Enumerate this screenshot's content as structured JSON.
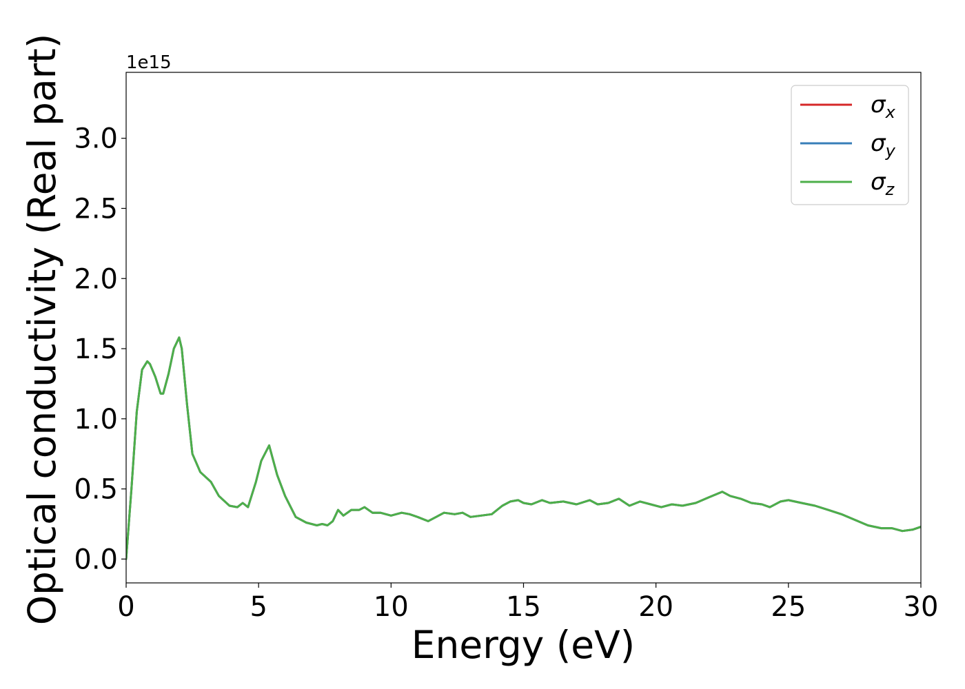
{
  "chart_data": {
    "type": "line",
    "xlabel": "Energy (eV)",
    "ylabel": "Optical conductivity (Real part)",
    "y_offset_text": "1e15",
    "xlim": [
      0,
      30
    ],
    "ylim": [
      -0.17,
      3.47
    ],
    "x_ticks": [
      0,
      5,
      10,
      15,
      20,
      25,
      30
    ],
    "x_tick_labels": [
      "0",
      "5",
      "10",
      "15",
      "20",
      "25",
      "30"
    ],
    "y_ticks": [
      0.0,
      0.5,
      1.0,
      1.5,
      2.0,
      2.5,
      3.0
    ],
    "y_tick_labels": [
      "0.0",
      "0.5",
      "1.0",
      "1.5",
      "2.0",
      "2.5",
      "3.0"
    ],
    "grid": false,
    "legend_position": "top-right",
    "x": [
      0,
      0.2,
      0.4,
      0.6,
      0.8,
      0.9,
      1.1,
      1.3,
      1.4,
      1.6,
      1.8,
      2.0,
      2.1,
      2.3,
      2.5,
      2.8,
      3.2,
      3.5,
      3.9,
      4.2,
      4.4,
      4.6,
      4.9,
      5.1,
      5.4,
      5.7,
      6.0,
      6.4,
      6.8,
      7.2,
      7.4,
      7.6,
      7.8,
      8.0,
      8.2,
      8.5,
      8.8,
      9.0,
      9.3,
      9.6,
      10.0,
      10.4,
      10.7,
      11.0,
      11.4,
      11.7,
      12.0,
      12.4,
      12.7,
      13.0,
      13.4,
      13.8,
      14.2,
      14.5,
      14.8,
      15.0,
      15.3,
      15.7,
      16.0,
      16.5,
      17.0,
      17.5,
      17.8,
      18.2,
      18.6,
      19.0,
      19.4,
      19.8,
      20.2,
      20.6,
      21.0,
      21.5,
      22.0,
      22.5,
      22.8,
      23.2,
      23.6,
      24.0,
      24.3,
      24.7,
      25.0,
      25.5,
      26.0,
      26.5,
      27.0,
      27.5,
      28.0,
      28.5,
      28.9,
      29.3,
      29.7,
      30.0
    ],
    "series": [
      {
        "name": "σx",
        "color": "#d62728",
        "y": [
          0.0,
          0.5,
          1.05,
          1.35,
          1.41,
          1.39,
          1.3,
          1.18,
          1.18,
          1.32,
          1.5,
          1.58,
          1.5,
          1.1,
          0.75,
          0.62,
          0.55,
          0.45,
          0.38,
          0.37,
          0.4,
          0.37,
          0.55,
          0.7,
          0.81,
          0.6,
          0.45,
          0.3,
          0.26,
          0.24,
          0.25,
          0.24,
          0.27,
          0.35,
          0.31,
          0.35,
          0.35,
          0.37,
          0.33,
          0.33,
          0.31,
          0.33,
          0.32,
          0.3,
          0.27,
          0.3,
          0.33,
          0.32,
          0.33,
          0.3,
          0.31,
          0.32,
          0.38,
          0.41,
          0.42,
          0.4,
          0.39,
          0.42,
          0.4,
          0.41,
          0.39,
          0.42,
          0.39,
          0.4,
          0.43,
          0.38,
          0.41,
          0.39,
          0.37,
          0.39,
          0.38,
          0.4,
          0.44,
          0.48,
          0.45,
          0.43,
          0.4,
          0.39,
          0.37,
          0.41,
          0.42,
          0.4,
          0.38,
          0.35,
          0.32,
          0.28,
          0.24,
          0.22,
          0.22,
          0.2,
          0.21,
          0.23
        ]
      },
      {
        "name": "σy",
        "color": "#377eb8",
        "y": [
          0.0,
          0.5,
          1.05,
          1.35,
          1.41,
          1.39,
          1.3,
          1.18,
          1.18,
          1.32,
          1.5,
          1.58,
          1.5,
          1.1,
          0.75,
          0.62,
          0.55,
          0.45,
          0.38,
          0.37,
          0.4,
          0.37,
          0.55,
          0.7,
          0.81,
          0.6,
          0.45,
          0.3,
          0.26,
          0.24,
          0.25,
          0.24,
          0.27,
          0.35,
          0.31,
          0.35,
          0.35,
          0.37,
          0.33,
          0.33,
          0.31,
          0.33,
          0.32,
          0.3,
          0.27,
          0.3,
          0.33,
          0.32,
          0.33,
          0.3,
          0.31,
          0.32,
          0.38,
          0.41,
          0.42,
          0.4,
          0.39,
          0.42,
          0.4,
          0.41,
          0.39,
          0.42,
          0.39,
          0.4,
          0.43,
          0.38,
          0.41,
          0.39,
          0.37,
          0.39,
          0.38,
          0.4,
          0.44,
          0.48,
          0.45,
          0.43,
          0.4,
          0.39,
          0.37,
          0.41,
          0.42,
          0.4,
          0.38,
          0.35,
          0.32,
          0.28,
          0.24,
          0.22,
          0.22,
          0.2,
          0.21,
          0.23
        ]
      },
      {
        "name": "σz",
        "color": "#4daf4a",
        "y": [
          0.0,
          0.5,
          1.05,
          1.35,
          1.41,
          1.39,
          1.3,
          1.18,
          1.18,
          1.32,
          1.5,
          1.58,
          1.5,
          1.1,
          0.75,
          0.62,
          0.55,
          0.45,
          0.38,
          0.37,
          0.4,
          0.37,
          0.55,
          0.7,
          0.81,
          0.6,
          0.45,
          0.3,
          0.26,
          0.24,
          0.25,
          0.24,
          0.27,
          0.35,
          0.31,
          0.35,
          0.35,
          0.37,
          0.33,
          0.33,
          0.31,
          0.33,
          0.32,
          0.3,
          0.27,
          0.3,
          0.33,
          0.32,
          0.33,
          0.3,
          0.31,
          0.32,
          0.38,
          0.41,
          0.42,
          0.4,
          0.39,
          0.42,
          0.4,
          0.41,
          0.39,
          0.42,
          0.39,
          0.4,
          0.43,
          0.38,
          0.41,
          0.39,
          0.37,
          0.39,
          0.38,
          0.4,
          0.44,
          0.48,
          0.45,
          0.43,
          0.4,
          0.39,
          0.37,
          0.41,
          0.42,
          0.4,
          0.38,
          0.35,
          0.32,
          0.28,
          0.24,
          0.22,
          0.22,
          0.2,
          0.21,
          0.23
        ]
      }
    ],
    "legend": {
      "entries": [
        {
          "symbol": "σ",
          "subscript": "x",
          "color": "#d62728"
        },
        {
          "symbol": "σ",
          "subscript": "y",
          "color": "#377eb8"
        },
        {
          "symbol": "σ",
          "subscript": "z",
          "color": "#4daf4a"
        }
      ]
    }
  }
}
